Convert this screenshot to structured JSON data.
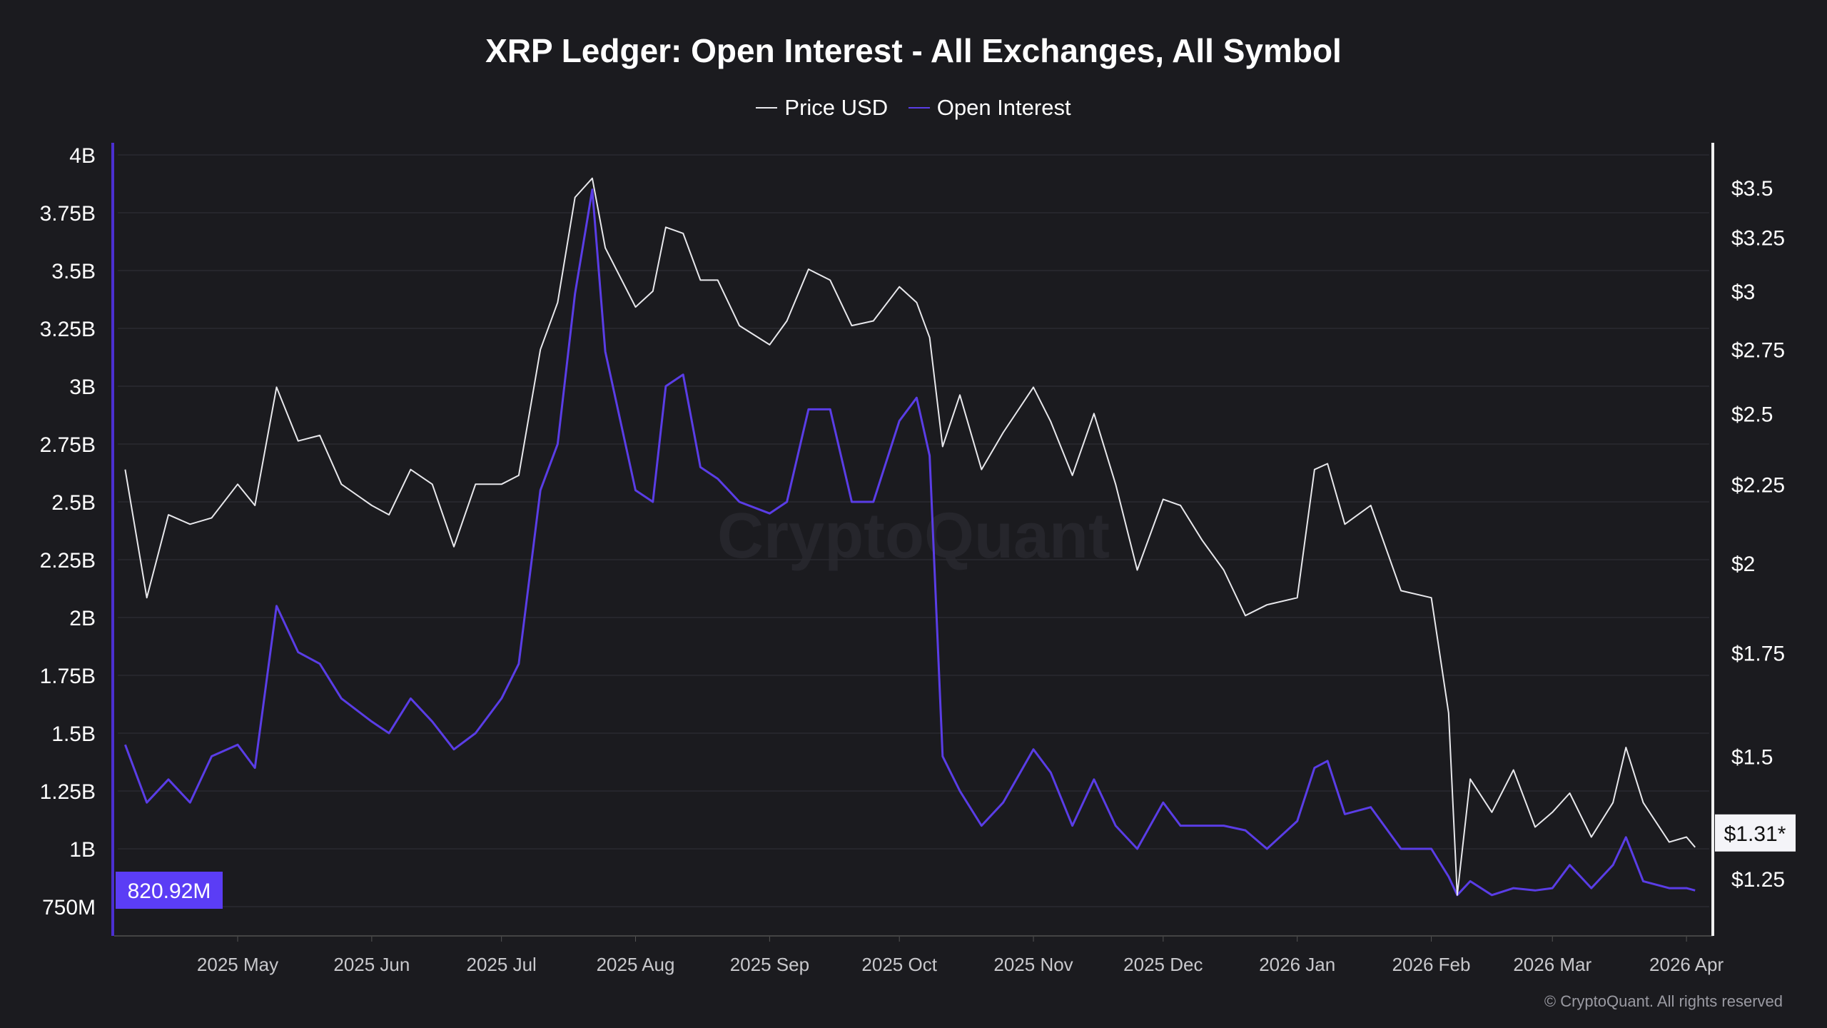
{
  "chart_data": {
    "type": "line",
    "title": "XRP Ledger: Open Interest - All Exchanges, All Symbol",
    "legend_position": "top",
    "grid": true,
    "x_tick_labels": [
      "2025 May",
      "2025 Jun",
      "2025 Jul",
      "2025 Aug",
      "2025 Sep",
      "2025 Oct",
      "2025 Nov",
      "2025 Dec",
      "2026 Jan",
      "2026 Feb",
      "2026 Mar",
      "2026 Apr"
    ],
    "left_axis": {
      "ticks": [
        "750M",
        "1B",
        "1.25B",
        "1.5B",
        "1.75B",
        "2B",
        "2.25B",
        "2.5B",
        "2.75B",
        "3B",
        "3.25B",
        "3.5B",
        "3.75B",
        "4B"
      ],
      "range_billions": [
        0.75,
        4.0
      ],
      "scale": "linear"
    },
    "right_axis": {
      "ticks": [
        "$1.25",
        "$1.5",
        "$1.75",
        "$2",
        "$2.25",
        "$2.5",
        "$2.75",
        "$3",
        "$3.25",
        "$3.5"
      ],
      "range_usd": [
        1.12,
        3.75
      ],
      "scale": "log"
    },
    "x": [
      "2025-04-05",
      "2025-04-10",
      "2025-04-15",
      "2025-04-20",
      "2025-04-25",
      "2025-05-01",
      "2025-05-05",
      "2025-05-10",
      "2025-05-15",
      "2025-05-20",
      "2025-05-25",
      "2025-06-01",
      "2025-06-05",
      "2025-06-10",
      "2025-06-15",
      "2025-06-20",
      "2025-06-25",
      "2025-07-01",
      "2025-07-05",
      "2025-07-10",
      "2025-07-14",
      "2025-07-18",
      "2025-07-22",
      "2025-07-25",
      "2025-08-01",
      "2025-08-05",
      "2025-08-08",
      "2025-08-12",
      "2025-08-16",
      "2025-08-20",
      "2025-08-25",
      "2025-09-01",
      "2025-09-05",
      "2025-09-10",
      "2025-09-15",
      "2025-09-20",
      "2025-09-25",
      "2025-10-01",
      "2025-10-05",
      "2025-10-08",
      "2025-10-11",
      "2025-10-15",
      "2025-10-20",
      "2025-10-25",
      "2025-11-01",
      "2025-11-05",
      "2025-11-10",
      "2025-11-15",
      "2025-11-20",
      "2025-11-25",
      "2025-12-01",
      "2025-12-05",
      "2025-12-10",
      "2025-12-15",
      "2025-12-20",
      "2025-12-25",
      "2026-01-01",
      "2026-01-05",
      "2026-01-08",
      "2026-01-12",
      "2026-01-18",
      "2026-01-25",
      "2026-02-01",
      "2026-02-05",
      "2026-02-07",
      "2026-02-10",
      "2026-02-15",
      "2026-02-20",
      "2026-02-25",
      "2026-03-01",
      "2026-03-05",
      "2026-03-10",
      "2026-03-15",
      "2026-03-18",
      "2026-03-22",
      "2026-03-28",
      "2026-04-01",
      "2026-04-03"
    ],
    "series": [
      {
        "name": "Price USD",
        "axis": "right",
        "color": "#e8e8ec",
        "values": [
          2.3,
          1.9,
          2.15,
          2.12,
          2.14,
          2.25,
          2.18,
          2.6,
          2.4,
          2.42,
          2.25,
          2.18,
          2.15,
          2.3,
          2.25,
          2.05,
          2.25,
          2.25,
          2.28,
          2.75,
          2.95,
          3.45,
          3.55,
          3.2,
          2.93,
          3.0,
          3.3,
          3.27,
          3.05,
          3.05,
          2.85,
          2.77,
          2.87,
          3.1,
          3.05,
          2.85,
          2.87,
          3.02,
          2.95,
          2.8,
          2.38,
          2.57,
          2.3,
          2.43,
          2.6,
          2.47,
          2.28,
          2.5,
          2.25,
          1.98,
          2.2,
          2.18,
          2.07,
          1.98,
          1.85,
          1.88,
          1.9,
          2.3,
          2.32,
          2.12,
          2.18,
          1.92,
          1.9,
          1.6,
          1.22,
          1.45,
          1.38,
          1.47,
          1.35,
          1.38,
          1.42,
          1.33,
          1.4,
          1.52,
          1.4,
          1.32,
          1.33,
          1.31
        ]
      },
      {
        "name": "Open Interest",
        "axis": "left",
        "color": "#5a3de6",
        "values": [
          1.45,
          1.2,
          1.3,
          1.2,
          1.4,
          1.45,
          1.35,
          2.05,
          1.85,
          1.8,
          1.65,
          1.55,
          1.5,
          1.65,
          1.55,
          1.43,
          1.5,
          1.65,
          1.8,
          2.55,
          2.75,
          3.4,
          3.85,
          3.15,
          2.55,
          2.5,
          3.0,
          3.05,
          2.65,
          2.6,
          2.5,
          2.45,
          2.5,
          2.9,
          2.9,
          2.5,
          2.5,
          2.85,
          2.95,
          2.7,
          1.4,
          1.25,
          1.1,
          1.2,
          1.43,
          1.33,
          1.1,
          1.3,
          1.1,
          1.0,
          1.2,
          1.1,
          1.1,
          1.1,
          1.08,
          1.0,
          1.12,
          1.35,
          1.38,
          1.15,
          1.18,
          1.0,
          1.0,
          0.88,
          0.8,
          0.86,
          0.8,
          0.83,
          0.82,
          0.83,
          0.93,
          0.83,
          0.93,
          1.05,
          0.86,
          0.83,
          0.83,
          0.82
        ]
      }
    ],
    "current_labels": {
      "open_interest": "820.92M",
      "price": "$1.31*"
    },
    "label_colors": {
      "open_interest_bg": "#5b3df5",
      "price_bg": "#f4f4f8"
    }
  },
  "watermark": "CryptoQuant",
  "copyright": "© CryptoQuant. All rights reserved"
}
